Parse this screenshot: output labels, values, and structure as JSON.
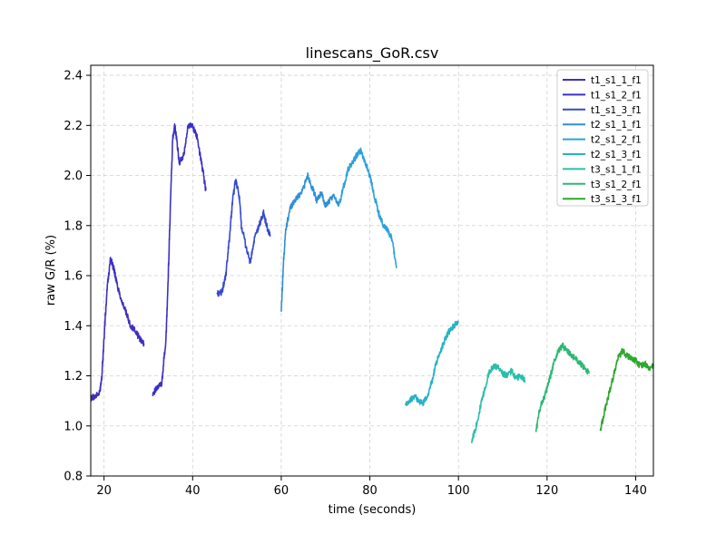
{
  "chart_data": {
    "type": "line",
    "title": "linescans_GoR.csv",
    "xlabel": "time (seconds)",
    "ylabel": "raw G/R (%)",
    "xlim": [
      17,
      144
    ],
    "ylim": [
      0.8,
      2.44
    ],
    "xticks": [
      20,
      40,
      60,
      80,
      100,
      120,
      140
    ],
    "yticks": [
      0.8,
      1.0,
      1.2,
      1.4,
      1.6,
      1.8,
      2.0,
      2.2,
      2.4
    ],
    "xtick_labels": [
      "20",
      "40",
      "60",
      "80",
      "100",
      "120",
      "140"
    ],
    "ytick_labels": [
      "0.8",
      "1.0",
      "1.2",
      "1.4",
      "1.6",
      "1.8",
      "2.0",
      "2.2",
      "2.4"
    ],
    "grid": true,
    "legend_position": "top-right",
    "series": [
      {
        "name": "t1_s1_1_f1",
        "color": "#3f2fbf",
        "x": [
          17,
          18,
          19,
          19.5,
          20,
          20.7,
          21.5,
          22.3,
          23,
          24,
          25,
          26,
          27,
          28,
          29
        ],
        "y": [
          1.11,
          1.12,
          1.13,
          1.2,
          1.35,
          1.55,
          1.67,
          1.62,
          1.56,
          1.5,
          1.45,
          1.4,
          1.38,
          1.35,
          1.33
        ]
      },
      {
        "name": "t1_s1_2_f1",
        "color": "#3a30c8",
        "x": [
          31,
          32,
          33,
          34,
          34.5,
          35,
          35.5,
          36,
          37,
          38,
          39,
          40,
          41,
          42,
          43
        ],
        "y": [
          1.13,
          1.15,
          1.17,
          1.35,
          1.6,
          1.9,
          2.15,
          2.2,
          2.05,
          2.08,
          2.2,
          2.2,
          2.15,
          2.05,
          1.94
        ]
      },
      {
        "name": "t1_s1_3_f1",
        "color": "#3549d0",
        "x": [
          45.5,
          46.5,
          47.5,
          48.3,
          49,
          49.7,
          50.5,
          51,
          52,
          53,
          54,
          55,
          56,
          57,
          57.5
        ],
        "y": [
          1.53,
          1.53,
          1.6,
          1.75,
          1.9,
          1.98,
          1.92,
          1.8,
          1.72,
          1.65,
          1.75,
          1.8,
          1.85,
          1.78,
          1.76
        ]
      },
      {
        "name": "t2_s1_1_f1",
        "color": "#2f8fd6",
        "x": [
          60,
          60.5,
          61,
          62,
          63,
          64,
          65,
          66,
          67,
          68,
          69,
          70,
          71,
          72,
          73
        ],
        "y": [
          1.46,
          1.65,
          1.78,
          1.87,
          1.9,
          1.92,
          1.95,
          2.0,
          1.95,
          1.9,
          1.93,
          1.88,
          1.9,
          1.92,
          1.88
        ]
      },
      {
        "name": "t2_s1_2_f1",
        "color": "#2fa0dc",
        "x": [
          73,
          74,
          75,
          76,
          77,
          78,
          79,
          80,
          81,
          82,
          83,
          84,
          85,
          86
        ],
        "y": [
          1.88,
          1.95,
          2.02,
          2.05,
          2.08,
          2.1,
          2.05,
          2.0,
          1.92,
          1.85,
          1.8,
          1.78,
          1.75,
          1.63
        ]
      },
      {
        "name": "t2_s1_3_f1",
        "color": "#27b2c8",
        "x": [
          88,
          89,
          90,
          91,
          92,
          93,
          94,
          95,
          96,
          97,
          98,
          99,
          100
        ],
        "y": [
          1.08,
          1.1,
          1.12,
          1.1,
          1.09,
          1.12,
          1.18,
          1.25,
          1.3,
          1.35,
          1.38,
          1.4,
          1.42
        ]
      },
      {
        "name": "t3_s1_1_f1",
        "color": "#2bbeaa",
        "x": [
          103,
          104,
          105,
          106,
          107,
          108,
          109,
          110,
          111,
          112,
          113,
          114,
          115
        ],
        "y": [
          0.94,
          1.0,
          1.08,
          1.15,
          1.22,
          1.24,
          1.23,
          1.21,
          1.2,
          1.22,
          1.19,
          1.2,
          1.18
        ]
      },
      {
        "name": "t3_s1_2_f1",
        "color": "#2cb872",
        "x": [
          117.5,
          118.5,
          119.5,
          120.5,
          121.5,
          122.5,
          123.5,
          124.5,
          125.5,
          126.5,
          127.5,
          128.5,
          129.5
        ],
        "y": [
          0.98,
          1.08,
          1.12,
          1.18,
          1.25,
          1.3,
          1.32,
          1.3,
          1.28,
          1.27,
          1.25,
          1.23,
          1.21
        ]
      },
      {
        "name": "t3_s1_3_f1",
        "color": "#2ea82e",
        "x": [
          132,
          133,
          134,
          135,
          136,
          137,
          138,
          139,
          140,
          141,
          142,
          143,
          144
        ],
        "y": [
          0.98,
          1.06,
          1.13,
          1.2,
          1.27,
          1.3,
          1.28,
          1.27,
          1.26,
          1.24,
          1.25,
          1.23,
          1.24
        ]
      }
    ]
  }
}
